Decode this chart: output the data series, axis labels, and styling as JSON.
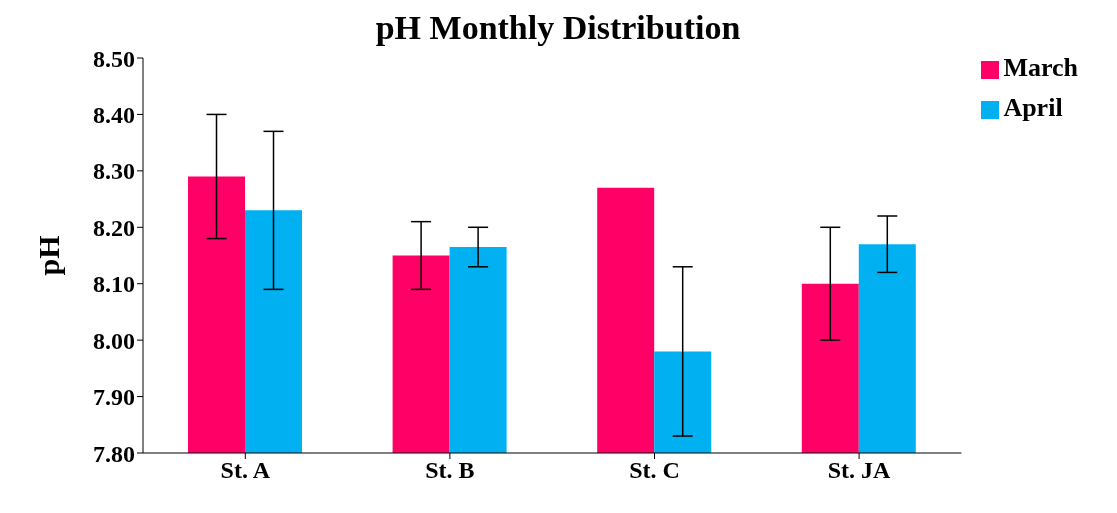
{
  "chart_data": {
    "type": "bar",
    "title": "pH Monthly Distribution",
    "ylabel": "pH",
    "categories": [
      "St. A",
      "St. B",
      "St. C",
      "St. JA"
    ],
    "series": [
      {
        "name": "March",
        "color": "#ff0066",
        "values": [
          8.29,
          8.15,
          8.27,
          8.1
        ],
        "errors": [
          [
            8.18,
            8.4
          ],
          [
            8.09,
            8.21
          ],
          null,
          [
            8.0,
            8.2
          ]
        ]
      },
      {
        "name": "April",
        "color": "#00b0f0",
        "values": [
          8.23,
          8.165,
          7.98,
          8.17
        ],
        "errors": [
          [
            8.09,
            8.37
          ],
          [
            8.13,
            8.2
          ],
          [
            7.83,
            8.13
          ],
          [
            8.12,
            8.22
          ]
        ]
      }
    ],
    "ylim": [
      7.8,
      8.5
    ],
    "yticks": [
      {
        "value": 7.8,
        "label": "7.80"
      },
      {
        "value": 7.9,
        "label": "7.90"
      },
      {
        "value": 8.0,
        "label": "8.00"
      },
      {
        "value": 8.1,
        "label": "8.10"
      },
      {
        "value": 8.2,
        "label": "8.20"
      },
      {
        "value": 8.3,
        "label": "8.30"
      },
      {
        "value": 8.4,
        "label": "8.40"
      },
      {
        "value": 8.5,
        "label": "8.50"
      }
    ],
    "grid": false,
    "legend": "top right"
  }
}
